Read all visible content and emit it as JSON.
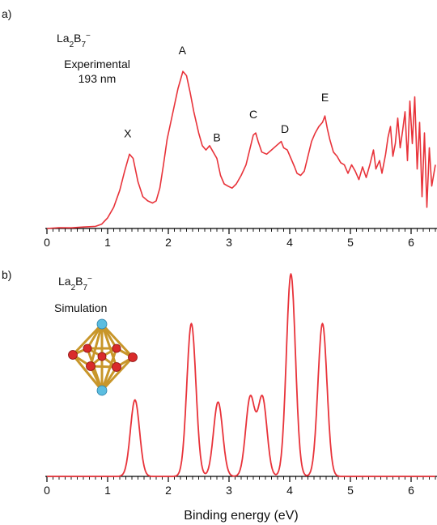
{
  "chart_data": [
    {
      "type": "line",
      "panel_label": "a)",
      "molecule": {
        "base": "La",
        "sub1": "2",
        "mid": "B",
        "sub2": "7",
        "sup": "−"
      },
      "annotation": [
        "Experimental",
        "193 nm"
      ],
      "xlim": [
        0,
        6.4
      ],
      "x_ticks": [
        "0",
        "1",
        "2",
        "3",
        "4",
        "5",
        "6"
      ],
      "line_color": "#e8333a",
      "peak_labels": [
        {
          "label": "X",
          "x": 1.33,
          "y": 0.43
        },
        {
          "label": "A",
          "x": 2.23,
          "y": 0.82
        },
        {
          "label": "B",
          "x": 2.8,
          "y": 0.41
        },
        {
          "label": "C",
          "x": 3.4,
          "y": 0.52
        },
        {
          "label": "D",
          "x": 3.92,
          "y": 0.45
        },
        {
          "label": "E",
          "x": 4.58,
          "y": 0.6
        }
      ],
      "series": [
        {
          "values": [
            [
              0.0,
              0.0
            ],
            [
              0.2,
              0.004
            ],
            [
              0.4,
              0.003
            ],
            [
              0.6,
              0.007
            ],
            [
              0.8,
              0.01
            ],
            [
              0.9,
              0.02
            ],
            [
              1.0,
              0.05
            ],
            [
              1.1,
              0.1
            ],
            [
              1.2,
              0.18
            ],
            [
              1.28,
              0.27
            ],
            [
              1.36,
              0.35
            ],
            [
              1.42,
              0.33
            ],
            [
              1.5,
              0.22
            ],
            [
              1.58,
              0.15
            ],
            [
              1.66,
              0.13
            ],
            [
              1.74,
              0.12
            ],
            [
              1.8,
              0.13
            ],
            [
              1.86,
              0.19
            ],
            [
              1.92,
              0.3
            ],
            [
              1.98,
              0.42
            ],
            [
              2.04,
              0.5
            ],
            [
              2.1,
              0.58
            ],
            [
              2.16,
              0.66
            ],
            [
              2.24,
              0.74
            ],
            [
              2.3,
              0.72
            ],
            [
              2.36,
              0.64
            ],
            [
              2.42,
              0.55
            ],
            [
              2.5,
              0.45
            ],
            [
              2.56,
              0.39
            ],
            [
              2.62,
              0.37
            ],
            [
              2.68,
              0.39
            ],
            [
              2.74,
              0.36
            ],
            [
              2.8,
              0.33
            ],
            [
              2.86,
              0.25
            ],
            [
              2.92,
              0.21
            ],
            [
              2.98,
              0.2
            ],
            [
              3.05,
              0.19
            ],
            [
              3.12,
              0.21
            ],
            [
              3.2,
              0.25
            ],
            [
              3.28,
              0.3
            ],
            [
              3.34,
              0.37
            ],
            [
              3.4,
              0.44
            ],
            [
              3.44,
              0.45
            ],
            [
              3.48,
              0.41
            ],
            [
              3.54,
              0.36
            ],
            [
              3.62,
              0.35
            ],
            [
              3.7,
              0.37
            ],
            [
              3.78,
              0.39
            ],
            [
              3.86,
              0.41
            ],
            [
              3.9,
              0.38
            ],
            [
              3.96,
              0.37
            ],
            [
              4.02,
              0.33
            ],
            [
              4.08,
              0.29
            ],
            [
              4.12,
              0.26
            ],
            [
              4.18,
              0.25
            ],
            [
              4.24,
              0.27
            ],
            [
              4.3,
              0.34
            ],
            [
              4.36,
              0.41
            ],
            [
              4.42,
              0.45
            ],
            [
              4.48,
              0.48
            ],
            [
              4.54,
              0.5
            ],
            [
              4.58,
              0.53
            ],
            [
              4.62,
              0.47
            ],
            [
              4.66,
              0.42
            ],
            [
              4.72,
              0.36
            ],
            [
              4.78,
              0.34
            ],
            [
              4.84,
              0.31
            ],
            [
              4.9,
              0.3
            ],
            [
              4.96,
              0.26
            ],
            [
              5.02,
              0.3
            ],
            [
              5.08,
              0.27
            ],
            [
              5.14,
              0.23
            ],
            [
              5.2,
              0.29
            ],
            [
              5.26,
              0.24
            ],
            [
              5.32,
              0.3
            ],
            [
              5.38,
              0.37
            ],
            [
              5.42,
              0.28
            ],
            [
              5.48,
              0.32
            ],
            [
              5.52,
              0.26
            ],
            [
              5.58,
              0.35
            ],
            [
              5.62,
              0.43
            ],
            [
              5.66,
              0.48
            ],
            [
              5.7,
              0.34
            ],
            [
              5.74,
              0.4
            ],
            [
              5.78,
              0.52
            ],
            [
              5.82,
              0.38
            ],
            [
              5.86,
              0.46
            ],
            [
              5.9,
              0.55
            ],
            [
              5.94,
              0.32
            ],
            [
              5.98,
              0.6
            ],
            [
              6.02,
              0.4
            ],
            [
              6.06,
              0.62
            ],
            [
              6.1,
              0.28
            ],
            [
              6.14,
              0.5
            ],
            [
              6.18,
              0.15
            ],
            [
              6.22,
              0.45
            ],
            [
              6.26,
              0.1
            ],
            [
              6.3,
              0.38
            ],
            [
              6.34,
              0.2
            ],
            [
              6.4,
              0.3
            ]
          ]
        }
      ]
    },
    {
      "type": "line",
      "panel_label": "b)",
      "molecule": {
        "base": "La",
        "sub1": "2",
        "mid": "B",
        "sub2": "7",
        "sup": "−"
      },
      "annotation": [
        "Simulation"
      ],
      "xlim": [
        0,
        6.4
      ],
      "x_ticks": [
        "0",
        "1",
        "2",
        "3",
        "4",
        "5",
        "6"
      ],
      "xlabel": "Binding energy (eV)",
      "line_color": "#e8333a",
      "gaussian_peaks": [
        {
          "center": 1.45,
          "height": 0.37
        },
        {
          "center": 2.38,
          "height": 0.74
        },
        {
          "center": 2.82,
          "height": 0.36
        },
        {
          "center": 3.35,
          "height": 0.38
        },
        {
          "center": 3.55,
          "height": 0.38
        },
        {
          "center": 4.02,
          "height": 0.98
        },
        {
          "center": 4.54,
          "height": 0.74
        }
      ],
      "peak_sigma": 0.075
    }
  ]
}
